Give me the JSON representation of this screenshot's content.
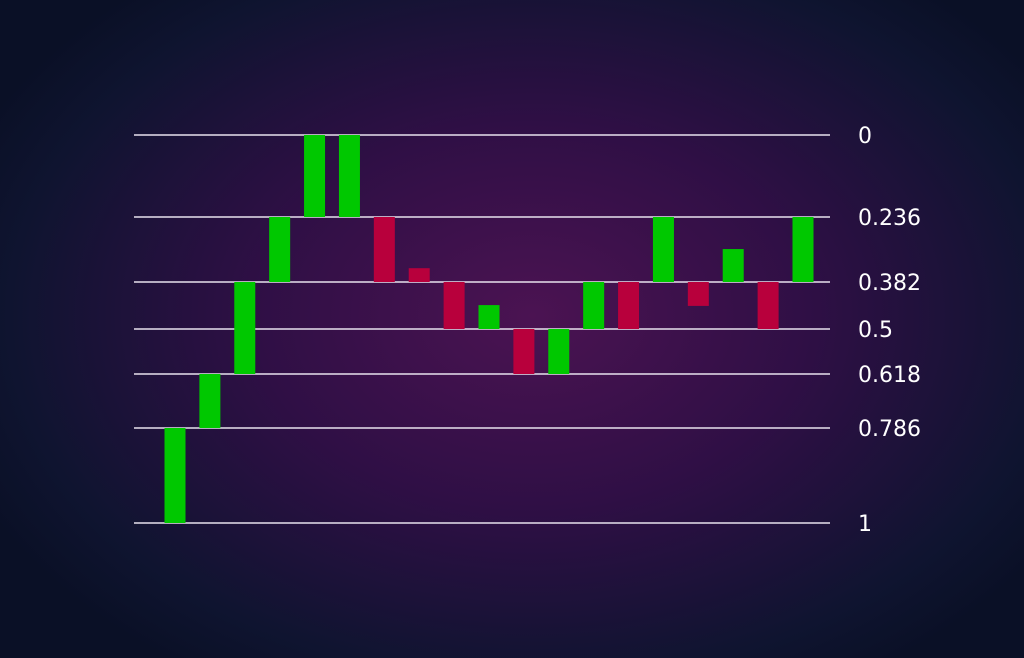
{
  "chart_data": {
    "type": "bar",
    "subtype": "candlestick-fibonacci-retracement",
    "title": "",
    "xlabel": "",
    "ylabel": "",
    "y_axis_inverted": true,
    "ylim": [
      0,
      1
    ],
    "levels": [
      {
        "value": 0,
        "label": "0"
      },
      {
        "value": 0.236,
        "label": "0.236"
      },
      {
        "value": 0.382,
        "label": "0.382"
      },
      {
        "value": 0.5,
        "label": "0.5"
      },
      {
        "value": 0.618,
        "label": "0.618"
      },
      {
        "value": 0.786,
        "label": "0.786"
      },
      {
        "value": 1,
        "label": "1"
      }
    ],
    "colors": {
      "up": "#00c800",
      "down": "#b8003c",
      "level_line": "#e8e2ee",
      "label": "#ffffff"
    },
    "bars": [
      {
        "direction": "up",
        "from": 1,
        "to": 0.786
      },
      {
        "direction": "up",
        "from": 0.786,
        "to": 0.618
      },
      {
        "direction": "up",
        "from": 0.618,
        "to": 0.382
      },
      {
        "direction": "up",
        "from": 0.382,
        "to": 0.236
      },
      {
        "direction": "up",
        "from": 0.236,
        "to": 0
      },
      {
        "direction": "up",
        "from": 0.236,
        "to": 0
      },
      {
        "direction": "down",
        "from": 0.236,
        "to": 0.382
      },
      {
        "direction": "down",
        "from": 0.351,
        "to": 0.382
      },
      {
        "direction": "down",
        "from": 0.382,
        "to": 0.5
      },
      {
        "direction": "up",
        "from": 0.5,
        "to": 0.44
      },
      {
        "direction": "down",
        "from": 0.5,
        "to": 0.618
      },
      {
        "direction": "up",
        "from": 0.618,
        "to": 0.5
      },
      {
        "direction": "up",
        "from": 0.5,
        "to": 0.382
      },
      {
        "direction": "down",
        "from": 0.382,
        "to": 0.5
      },
      {
        "direction": "up",
        "from": 0.382,
        "to": 0.236
      },
      {
        "direction": "down",
        "from": 0.382,
        "to": 0.442
      },
      {
        "direction": "up",
        "from": 0.382,
        "to": 0.308
      },
      {
        "direction": "down",
        "from": 0.382,
        "to": 0.5
      },
      {
        "direction": "up",
        "from": 0.382,
        "to": 0.236
      }
    ],
    "grid": false,
    "legend": "none"
  }
}
